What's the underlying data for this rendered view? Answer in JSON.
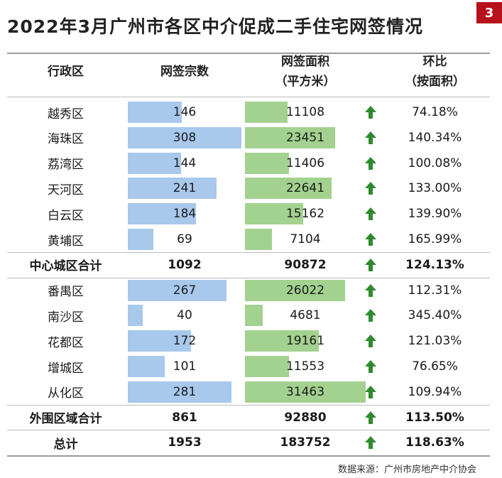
{
  "title": "2022年3月广州市各区中介促成二手住宅网签情况",
  "page_number": "3",
  "source": "数据来源：广州市房地产中介协会",
  "headers": {
    "district": "行政区",
    "count": "网签宗数",
    "area_line1": "网签面积",
    "area_line2": "（平方米）",
    "mom_line1": "环比",
    "mom_line2": "（按面积）"
  },
  "colors": {
    "count_bar": "#a8c8ec",
    "area_bar": "#a3d18f",
    "up_arrow": "#2f8a2f",
    "badge": "#b5121b"
  },
  "chart_data": {
    "type": "table",
    "title": "2022年3月广州市各区中介促成二手住宅网签情况",
    "columns": [
      "行政区",
      "网签宗数",
      "网签面积（平方米）",
      "环比（按面积）"
    ],
    "bar_scale": {
      "count_max": 308,
      "area_max": 31463
    },
    "rows": [
      {
        "name": "越秀区",
        "count": 146,
        "area": 11108,
        "mom": "74.18%",
        "bar": true,
        "bold": false
      },
      {
        "name": "海珠区",
        "count": 308,
        "area": 23451,
        "mom": "140.34%",
        "bar": true,
        "bold": false
      },
      {
        "name": "荔湾区",
        "count": 144,
        "area": 11406,
        "mom": "100.08%",
        "bar": true,
        "bold": false
      },
      {
        "name": "天河区",
        "count": 241,
        "area": 22641,
        "mom": "133.00%",
        "bar": true,
        "bold": false
      },
      {
        "name": "白云区",
        "count": 184,
        "area": 15162,
        "mom": "139.90%",
        "bar": true,
        "bold": false
      },
      {
        "name": "黄埔区",
        "count": 69,
        "area": 7104,
        "mom": "165.99%",
        "bar": true,
        "bold": false
      },
      {
        "name": "中心城区合计",
        "count": 1092,
        "area": 90872,
        "mom": "124.13%",
        "bar": false,
        "bold": true
      },
      {
        "name": "番禺区",
        "count": 267,
        "area": 26022,
        "mom": "112.31%",
        "bar": true,
        "bold": false
      },
      {
        "name": "南沙区",
        "count": 40,
        "area": 4681,
        "mom": "345.40%",
        "bar": true,
        "bold": false
      },
      {
        "name": "花都区",
        "count": 172,
        "area": 19161,
        "mom": "121.03%",
        "bar": true,
        "bold": false
      },
      {
        "name": "增城区",
        "count": 101,
        "area": 11553,
        "mom": "76.65%",
        "bar": true,
        "bold": false
      },
      {
        "name": "从化区",
        "count": 281,
        "area": 31463,
        "mom": "109.94%",
        "bar": true,
        "bold": false
      },
      {
        "name": "外围区域合计",
        "count": 861,
        "area": 92880,
        "mom": "113.50%",
        "bar": false,
        "bold": true
      },
      {
        "name": "总计",
        "count": 1953,
        "area": 183752,
        "mom": "118.63%",
        "bar": false,
        "bold": true
      }
    ]
  }
}
